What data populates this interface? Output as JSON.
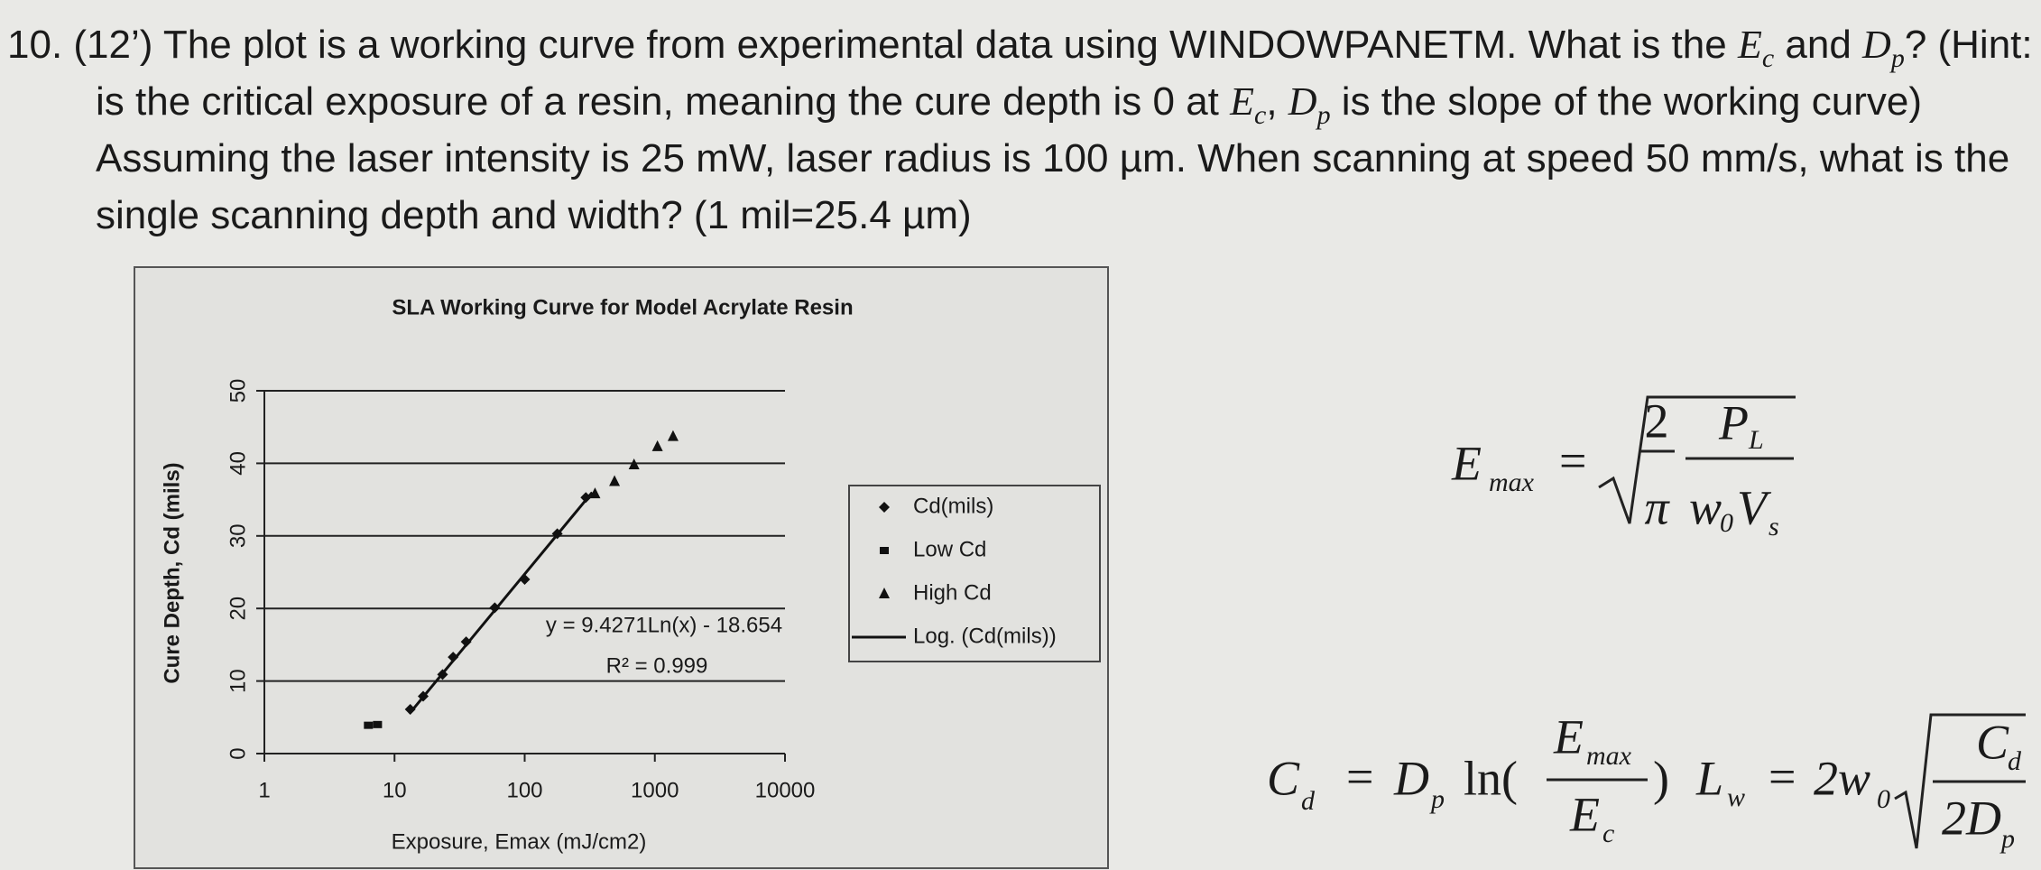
{
  "question": [
    "10. (12’) The plot is a working curve from experimental data using WINDOWPANETM. What is the ",
    "E",
    "c",
    " and ",
    "D",
    "p",
    "? (Hint: ",
    "E",
    "c",
    " is the critical exposure of a resin, meaning the cure depth is 0 at ",
    "E",
    "c",
    ", ",
    "D",
    "p",
    " is the slope of the working curve) Assuming the laser intensity is 25 mW, laser radius is 100 µm. When scanning at speed 50 mm/s, what is the single scanning depth and width? (1 mil=25.4 µm)"
  ],
  "chart_data": {
    "type": "scatter",
    "title": "SLA Working Curve for Model Acrylate Resin",
    "x_label": "Exposure, Emax (mJ/cm2)",
    "y_label": "Cure Depth, Cd (mils)",
    "x_log": true,
    "grid": true,
    "xlim": [
      1,
      10000
    ],
    "xticks": [
      1,
      10,
      100,
      1000,
      10000
    ],
    "ylim": [
      0,
      50
    ],
    "yticks": [
      0,
      10,
      20,
      30,
      40,
      50
    ],
    "series": [
      {
        "name": "Cd(mils)",
        "color": "#111111",
        "marker": "diamond",
        "x": [
          13.2,
          16.6,
          23.4,
          28.2,
          35.5,
          58.9,
          100,
          178,
          295
        ],
        "values": [
          6.1,
          7.9,
          10.9,
          13.3,
          15.4,
          20.1,
          24.0,
          30.3,
          35.3
        ]
      },
      {
        "name": "Low Cd",
        "color": "#111111",
        "marker": "square",
        "x": [
          6.3,
          7.4
        ],
        "values": [
          3.9,
          4.0
        ]
      },
      {
        "name": "High Cd",
        "color": "#111111",
        "marker": "triangle",
        "x": [
          347,
          490,
          692,
          1047,
          1380
        ],
        "values": [
          35.8,
          37.5,
          39.8,
          42.3,
          43.7
        ]
      },
      {
        "name": "Log. (Cd(mils))",
        "color": "#111111",
        "marker": "line",
        "x": [
          13,
          330
        ],
        "values": [
          5.5,
          36.0
        ]
      }
    ],
    "annotations": [
      "y = 9.4271Ln(x) - 18.654",
      "R² = 0.999"
    ]
  },
  "formulas": {
    "emax": {
      "E": "E",
      "E_sub": "max",
      "eq": "=",
      "two": "2",
      "pi": "π",
      "P": "P",
      "P_sub": "L",
      "w": "w",
      "w_sub": "0",
      "V": "V",
      "V_sub": "s"
    },
    "cd": {
      "C": "C",
      "C_sub": "d",
      "eq": "=",
      "D": "D",
      "D_sub": "p",
      "ln": "ln(",
      "E": "E",
      "E_sub": "max",
      "Ec": "E",
      "Ec_sub": "c",
      "close": ")"
    },
    "lw": {
      "L": "L",
      "L_sub": "w",
      "eq": "=",
      "two_w": "2w",
      "w_sub": "0",
      "C": "C",
      "C_sub": "d",
      "twoD": "2D",
      "D_sub": "p"
    }
  }
}
